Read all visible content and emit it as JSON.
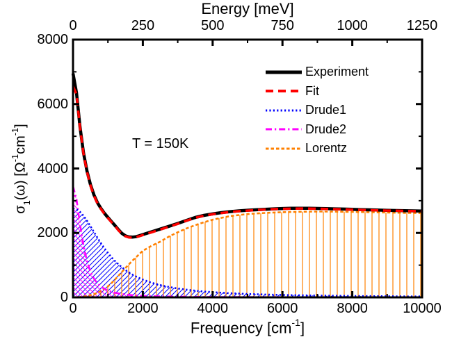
{
  "figure": {
    "annotation": "T = 150K",
    "background": "#ffffff",
    "frame_color": "#000000",
    "legend": [
      {
        "label": "Experiment",
        "series": "Experiment"
      },
      {
        "label": "Fit",
        "series": "Fit"
      },
      {
        "label": "Drude1",
        "series": "Drude1"
      },
      {
        "label": "Drude2",
        "series": "Drude2"
      },
      {
        "label": "Lorentz",
        "series": "Lorentz"
      }
    ]
  },
  "axes": {
    "top": {
      "title": "Energy [meV]",
      "ticks": [
        "0",
        "250",
        "500",
        "750",
        "1000",
        "1250"
      ],
      "tick_values": [
        0,
        250,
        500,
        750,
        1000,
        1250
      ],
      "minor_values": [
        125,
        375,
        625,
        875,
        1125
      ]
    },
    "bottom": {
      "title_parts": {
        "p1": "Frequency [cm",
        "sup": "-1",
        "p2": "]"
      },
      "ticks": [
        "0",
        "2000",
        "4000",
        "6000",
        "8000",
        "10000"
      ],
      "tick_values": [
        0,
        2000,
        4000,
        6000,
        8000,
        10000
      ],
      "minor_values": [
        1000,
        3000,
        5000,
        7000,
        9000
      ]
    },
    "left": {
      "title_parts": {
        "p1": "σ",
        "sub": "1",
        "p2": "(ω) [Ω",
        "sup1": "-1",
        "p3": "cm",
        "sup2": "-1",
        "p4": "]"
      },
      "ticks": [
        "0",
        "2000",
        "4000",
        "6000",
        "8000"
      ],
      "tick_values": [
        0,
        2000,
        4000,
        6000,
        8000
      ],
      "minor_values": [
        1000,
        3000,
        5000,
        7000
      ]
    }
  },
  "chart_data": {
    "type": "line",
    "title": "",
    "xlabel": "Frequency [cm-1]",
    "x2label": "Energy [meV]",
    "ylabel": "sigma_1(omega) [Ohm-1 cm-1]",
    "xlim": [
      0,
      10000
    ],
    "x2lim": [
      0,
      1250
    ],
    "ylim": [
      0,
      8000
    ],
    "grid": false,
    "legend_position": "upper-right-inside",
    "annotation": {
      "text": "T = 150K",
      "x": 1700,
      "y": 4400
    },
    "x": [
      0,
      100,
      200,
      300,
      400,
      500,
      600,
      700,
      800,
      900,
      1000,
      1100,
      1200,
      1300,
      1400,
      1500,
      1600,
      1700,
      1800,
      1900,
      2000,
      2250,
      2500,
      2750,
      3000,
      3250,
      3500,
      3750,
      4000,
      4250,
      4500,
      4750,
      5000,
      5250,
      5500,
      5750,
      6000,
      6250,
      6500,
      6750,
      7000,
      7250,
      7500,
      7750,
      8000,
      8250,
      8500,
      8750,
      9000,
      9250,
      9500,
      9750,
      10000
    ],
    "series": [
      {
        "name": "Experiment",
        "color": "#000000",
        "style": "solid",
        "width": 4.5,
        "values": [
          6950,
          6350,
          5300,
          4480,
          3920,
          3500,
          3180,
          2940,
          2760,
          2610,
          2480,
          2355,
          2235,
          2100,
          1985,
          1910,
          1875,
          1870,
          1882,
          1912,
          1950,
          2035,
          2120,
          2205,
          2295,
          2390,
          2480,
          2545,
          2590,
          2630,
          2660,
          2685,
          2705,
          2720,
          2735,
          2748,
          2758,
          2764,
          2766,
          2764,
          2760,
          2754,
          2747,
          2740,
          2732,
          2724,
          2716,
          2709,
          2702,
          2696,
          2690,
          2685,
          2680
        ]
      },
      {
        "name": "Fit",
        "color": "#ff0000",
        "style": "dashed",
        "width": 3.5,
        "values": [
          6550,
          6300,
          5280,
          4455,
          3898,
          3472,
          3156,
          2918,
          2740,
          2592,
          2462,
          2338,
          2218,
          2082,
          1968,
          1895,
          1860,
          1855,
          1867,
          1897,
          1935,
          2018,
          2105,
          2192,
          2282,
          2378,
          2468,
          2533,
          2578,
          2618,
          2648,
          2673,
          2694,
          2710,
          2725,
          2738,
          2748,
          2754,
          2757,
          2755,
          2751,
          2745,
          2738,
          2731,
          2723,
          2715,
          2707,
          2700,
          2694,
          2688,
          2682,
          2678,
          2673
        ]
      },
      {
        "name": "Drude1",
        "color": "#0000ff",
        "style": "dotted",
        "width": 2.6,
        "hatch": "/",
        "values": [
          2760,
          2733,
          2654,
          2533,
          2379,
          2208,
          2029,
          1853,
          1683,
          1525,
          1380,
          1249,
          1131,
          1026,
          933,
          849,
          776,
          710,
          652,
          600,
          552,
          456,
          381,
          322,
          276,
          239,
          207,
          182,
          161,
          144,
          130,
          117,
          106,
          97,
          89,
          81,
          75,
          69,
          64,
          60,
          56,
          52,
          49,
          46,
          43,
          41,
          38,
          36,
          34,
          32,
          31,
          29,
          28
        ]
      },
      {
        "name": "Drude2",
        "color": "#ff00ff",
        "style": "dashdot",
        "width": 2.6,
        "hatch": "\\",
        "values": [
          3450,
          3048,
          2269,
          1610,
          1126,
          798,
          580,
          434,
          334,
          263,
          211,
          173,
          144,
          122,
          104,
          90,
          78,
          69,
          61,
          54,
          48,
          38,
          31,
          26,
          22,
          19,
          16,
          14,
          12,
          11,
          10,
          9,
          8,
          7,
          7,
          6,
          6,
          5,
          5,
          4,
          4,
          4,
          3,
          3,
          3,
          3,
          3,
          2,
          2,
          2,
          2,
          2,
          2
        ]
      },
      {
        "name": "Lorentz",
        "color": "#ff8000",
        "style": "shortdash",
        "width": 2.6,
        "hatch": "|",
        "drop_to_zero_at_end": true,
        "values": [
          0,
          6,
          14,
          26,
          44,
          68,
          100,
          140,
          195,
          260,
          340,
          440,
          550,
          670,
          790,
          910,
          1025,
          1135,
          1240,
          1345,
          1445,
          1600,
          1730,
          1890,
          2020,
          2140,
          2240,
          2330,
          2410,
          2470,
          2520,
          2555,
          2585,
          2605,
          2620,
          2632,
          2642,
          2650,
          2656,
          2660,
          2662,
          2662,
          2660,
          2656,
          2652,
          2648,
          2643,
          2638,
          2633,
          2628,
          2623,
          2619,
          2615
        ]
      }
    ]
  }
}
